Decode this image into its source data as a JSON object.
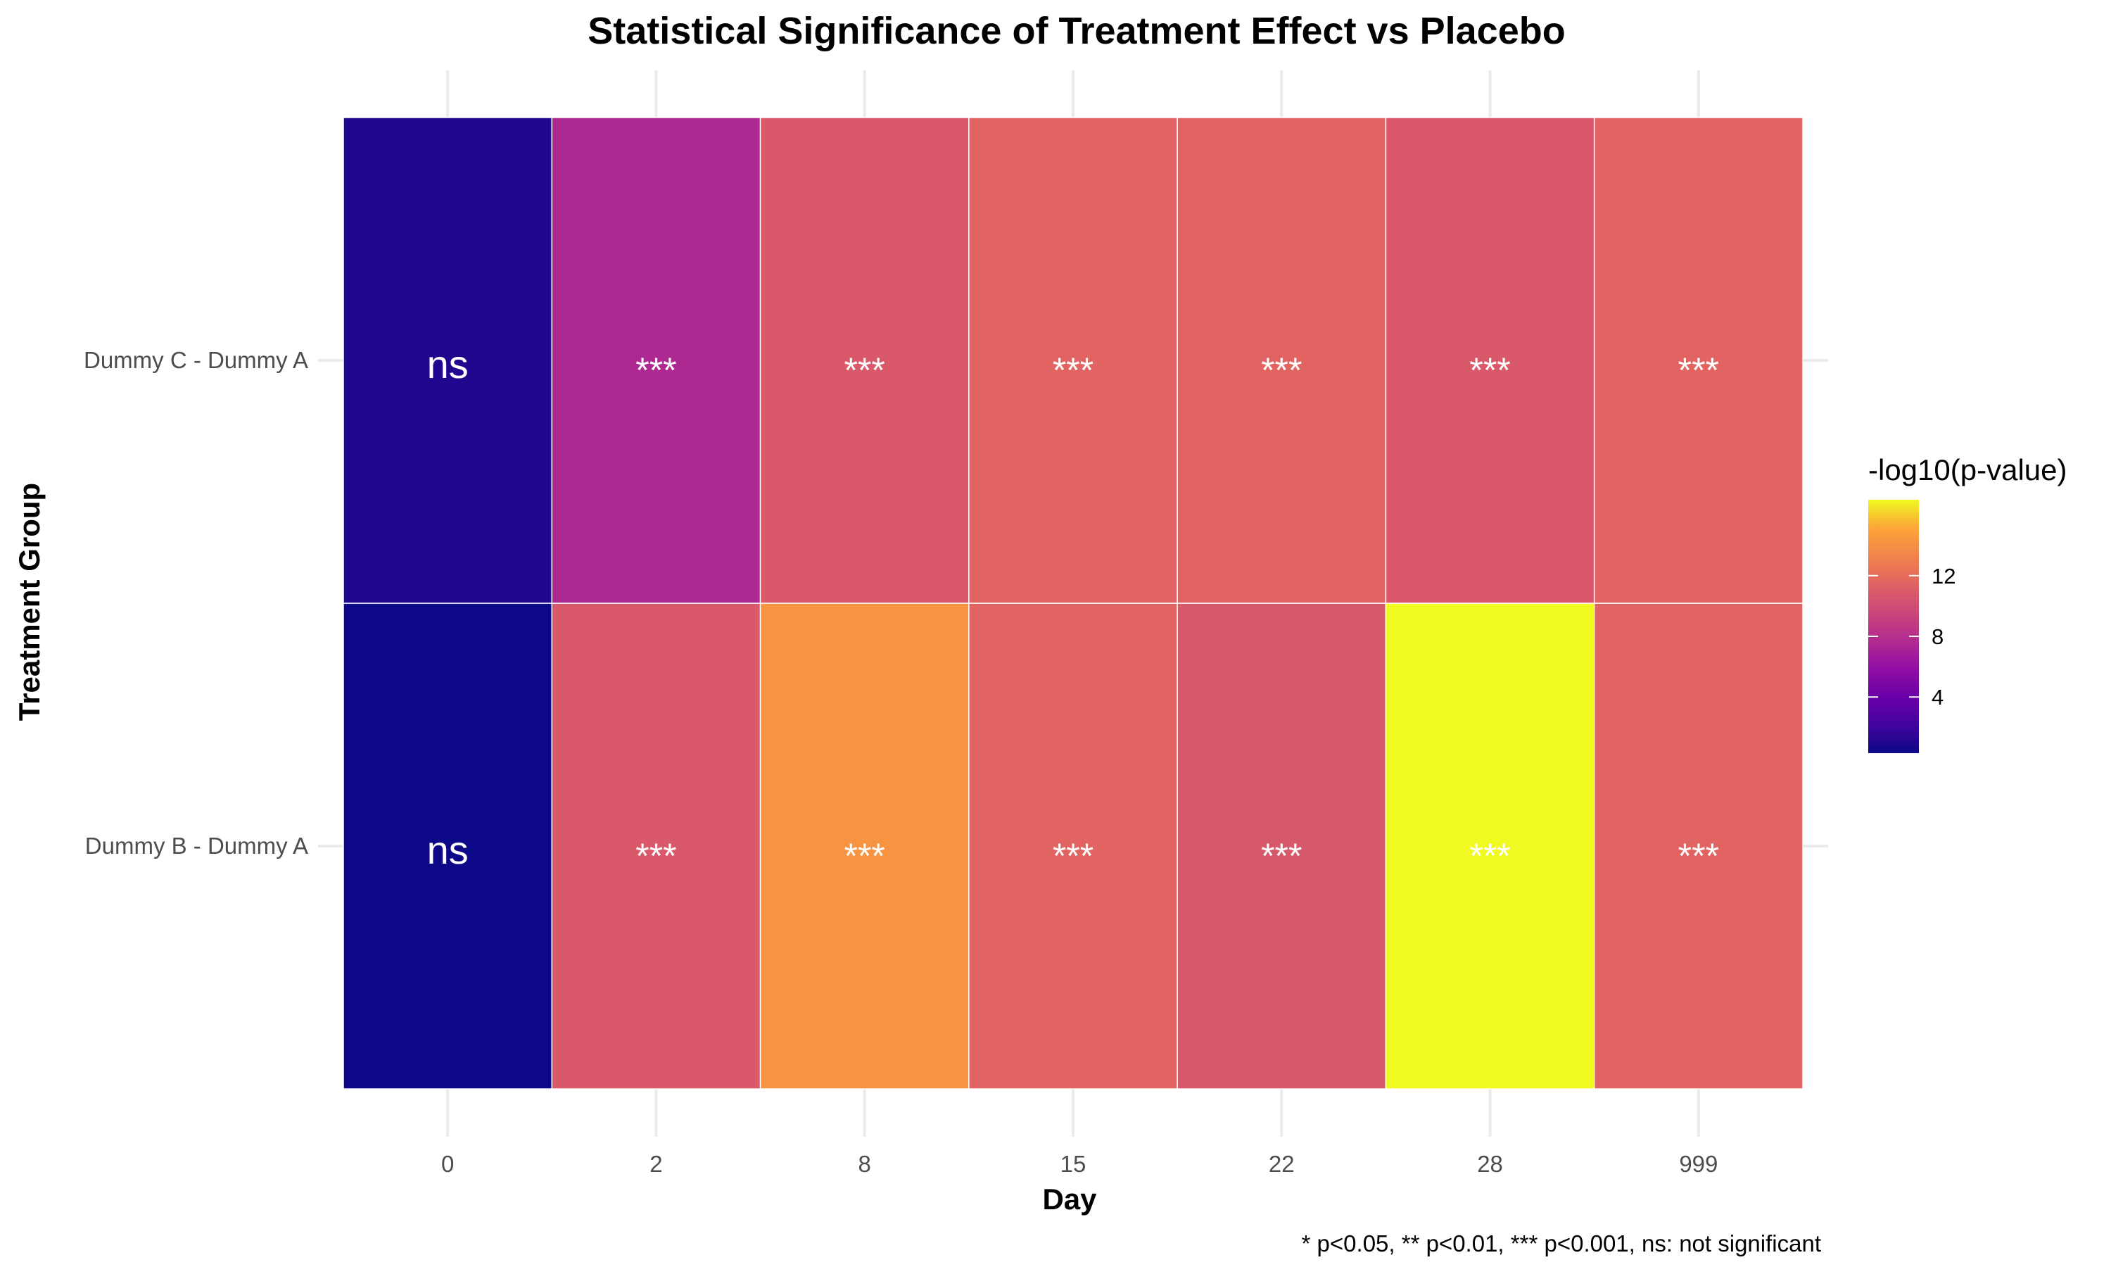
{
  "chart_data": {
    "type": "heatmap",
    "title": "Statistical Significance of Treatment Effect vs Placebo",
    "xlabel": "Day",
    "ylabel": "Treatment Group",
    "x_categories": [
      "0",
      "2",
      "8",
      "15",
      "22",
      "28",
      "999"
    ],
    "y_categories": [
      "Dummy B - Dummy A",
      "Dummy C - Dummy A"
    ],
    "values": [
      [
        0.3,
        10.8,
        14.2,
        11.5,
        10.7,
        17.0,
        11.5
      ],
      [
        1.0,
        7.5,
        10.8,
        11.5,
        11.5,
        10.8,
        11.5
      ]
    ],
    "labels": [
      [
        "ns",
        "***",
        "***",
        "***",
        "***",
        "***",
        "***"
      ],
      [
        "ns",
        "***",
        "***",
        "***",
        "***",
        "***",
        "***"
      ]
    ],
    "legend": {
      "title": "-log10(p-value)",
      "ticks": [
        4,
        8,
        12
      ],
      "range": [
        0.3,
        17
      ],
      "placement": "right"
    },
    "colorscale": "plasma",
    "caption": "* p<0.05, ** p<0.01, *** p<0.001, ns: not significant",
    "grid": true
  }
}
